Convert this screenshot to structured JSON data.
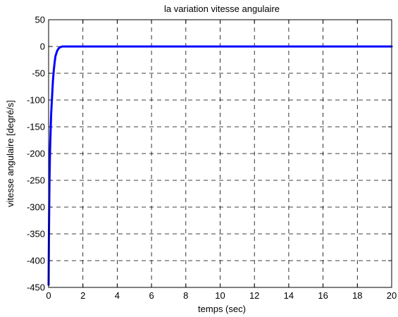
{
  "chart_data": {
    "type": "line",
    "title": "la variation vitesse angulaire",
    "xlabel": "temps (sec)",
    "ylabel": "vitesse angulaire [degré/s]",
    "xlim": [
      0,
      20
    ],
    "ylim": [
      -450,
      50
    ],
    "xticks": [
      0,
      2,
      4,
      6,
      8,
      10,
      12,
      14,
      16,
      18,
      20
    ],
    "yticks": [
      50,
      0,
      -50,
      -100,
      -150,
      -200,
      -250,
      -300,
      -350,
      -400,
      -450
    ],
    "grid": true,
    "grid_style": "dashed",
    "series": [
      {
        "color": "#0000ff",
        "x": [
          0,
          0.02,
          0.05,
          0.08,
          0.1,
          0.15,
          0.2,
          0.25,
          0.3,
          0.35,
          0.4,
          0.5,
          0.6,
          0.7,
          0.8,
          1,
          2,
          5,
          10,
          15,
          20
        ],
        "y": [
          -445,
          -350,
          -250,
          -200,
          -175,
          -125,
          -95,
          -65,
          -45,
          -30,
          -18,
          -8,
          -3,
          -1,
          0,
          0,
          0,
          0,
          0,
          0,
          0
        ]
      }
    ]
  }
}
